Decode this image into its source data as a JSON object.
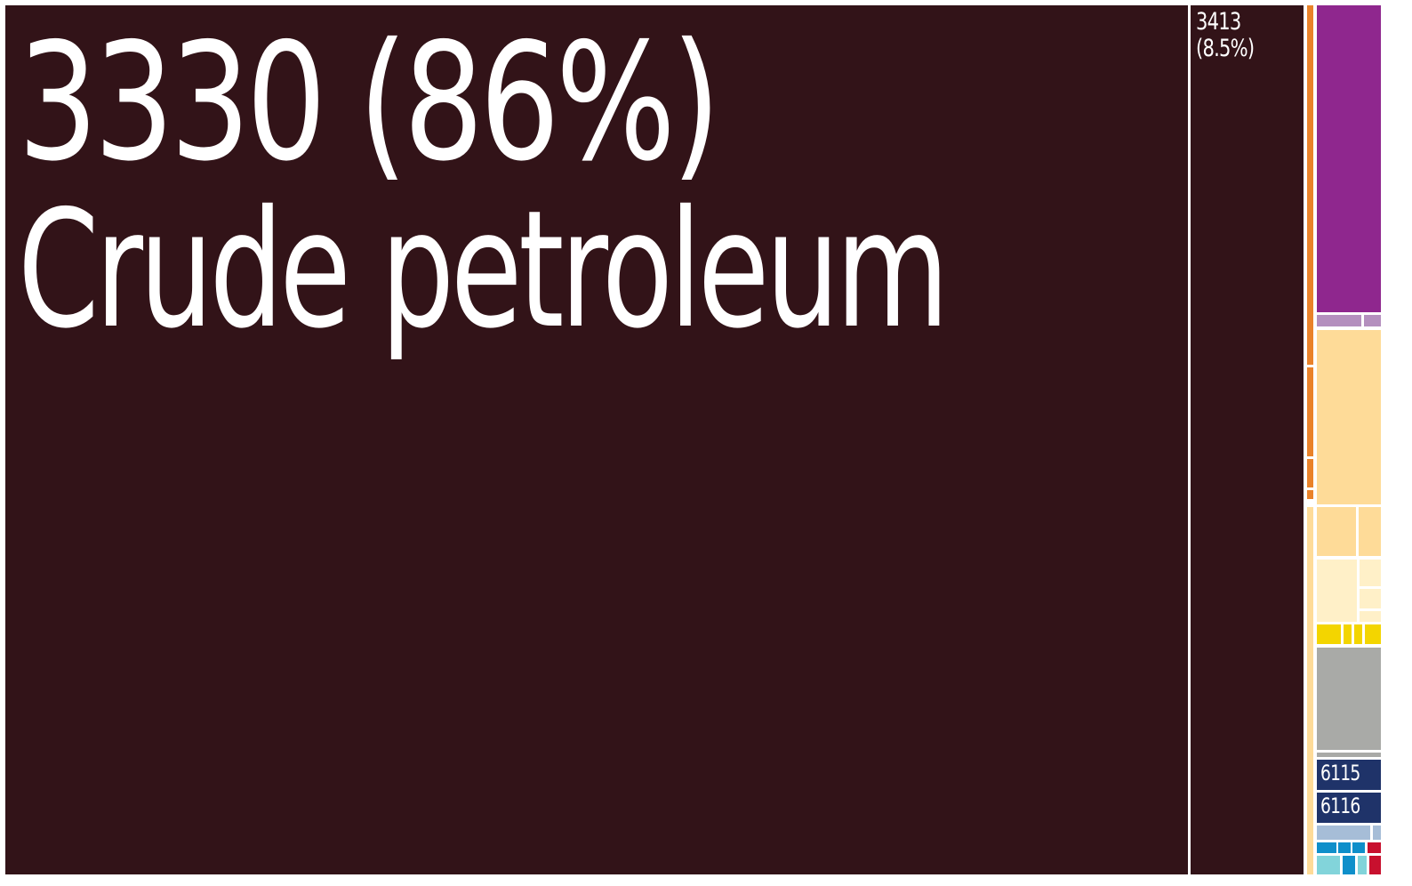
{
  "chart_data": {
    "type": "treemap",
    "unit": "%",
    "tiles": [
      {
        "code": "3330",
        "percent": "86%",
        "label": "Crude petroleum",
        "color": "#321318"
      },
      {
        "code": "3413",
        "percent": "8.5%",
        "label": "",
        "color": "#321318"
      },
      {
        "code": "",
        "percent": "",
        "label": "",
        "color": "#e9822a"
      },
      {
        "code": "",
        "percent": "",
        "label": "",
        "color": "#8f278e"
      },
      {
        "code": "",
        "percent": "",
        "label": "",
        "color": "#b48fbe"
      },
      {
        "code": "",
        "percent": "",
        "label": "",
        "color": "#fedb98"
      },
      {
        "code": "",
        "percent": "",
        "label": "",
        "color": "#fff0c8"
      },
      {
        "code": "",
        "percent": "",
        "label": "",
        "color": "#f3d500"
      },
      {
        "code": "",
        "percent": "",
        "label": "",
        "color": "#a9aaa7"
      },
      {
        "code": "6115",
        "percent": "",
        "label": "",
        "color": "#1f3369"
      },
      {
        "code": "6116",
        "percent": "",
        "label": "",
        "color": "#1f3369"
      },
      {
        "code": "",
        "percent": "",
        "label": "",
        "color": "#a6bdd7"
      },
      {
        "code": "",
        "percent": "",
        "label": "",
        "color": "#0f8fca"
      },
      {
        "code": "",
        "percent": "",
        "label": "",
        "color": "#c8102e"
      },
      {
        "code": "",
        "percent": "",
        "label": "",
        "color": "#82d4da"
      }
    ]
  }
}
